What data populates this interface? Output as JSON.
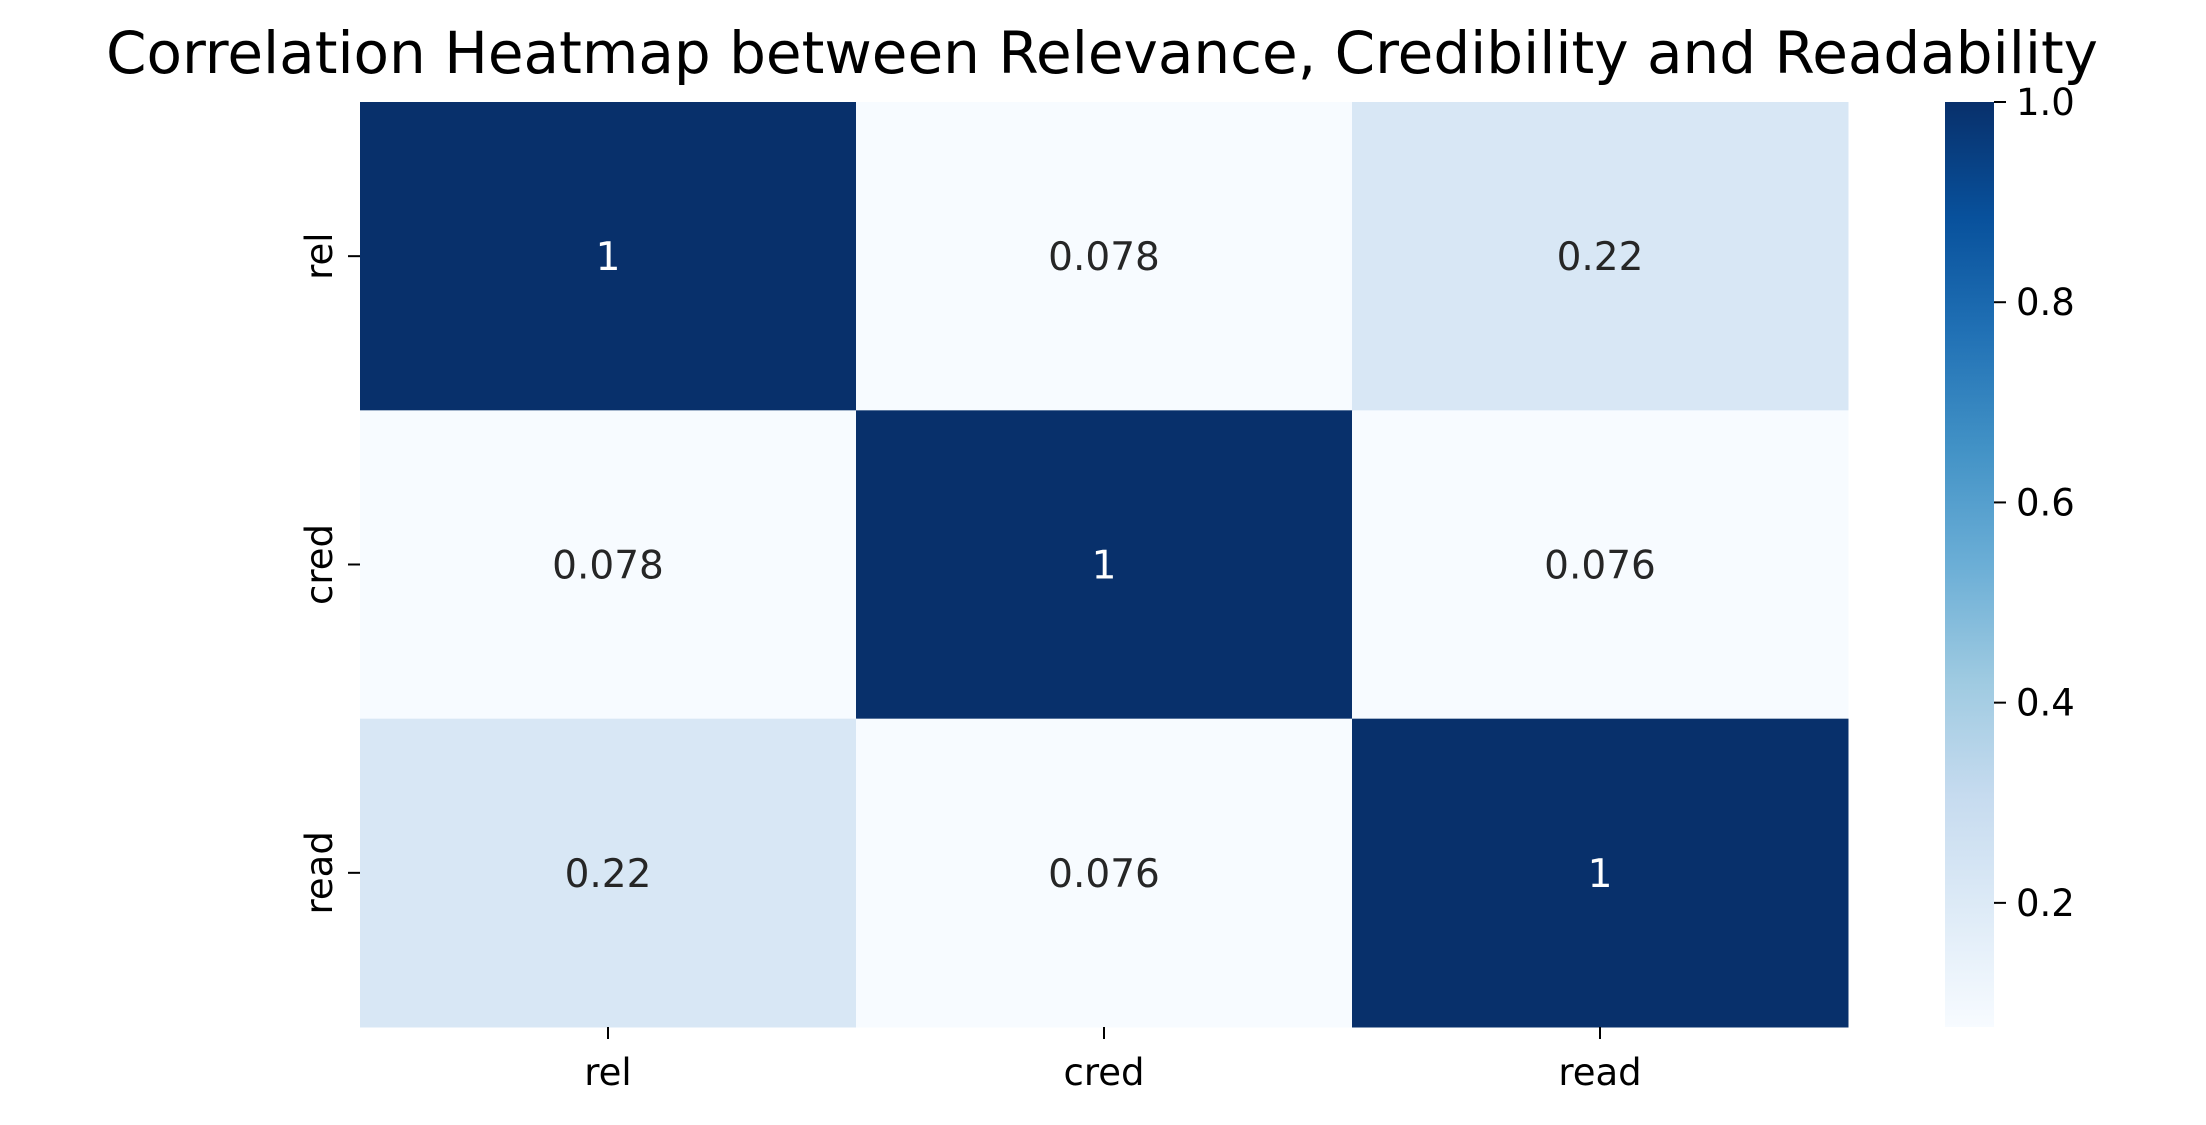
{
  "chart_data": {
    "type": "heatmap",
    "title": "Correlation Heatmap between Relevance, Credibility and Readability",
    "x_labels": [
      "rel",
      "cred",
      "read"
    ],
    "y_labels": [
      "rel",
      "cred",
      "read"
    ],
    "values": [
      [
        1,
        0.078,
        0.22
      ],
      [
        0.078,
        1,
        0.076
      ],
      [
        0.22,
        0.076,
        1
      ]
    ],
    "annotations": [
      [
        "1",
        "0.078",
        "0.22"
      ],
      [
        "0.078",
        "1",
        "0.076"
      ],
      [
        "0.22",
        "0.076",
        "1"
      ]
    ],
    "colormap": "Blues",
    "colorbar": {
      "range": [
        0.076,
        1.0
      ],
      "ticks": [
        0.2,
        0.4,
        0.6,
        0.8,
        1.0
      ],
      "tick_labels": [
        "0.2",
        "0.4",
        "0.6",
        "0.8",
        "1.0"
      ]
    },
    "annotation_colors": {
      "on_dark": "#ffffff",
      "on_light": "#262626"
    },
    "grid": false,
    "legend": "none"
  }
}
